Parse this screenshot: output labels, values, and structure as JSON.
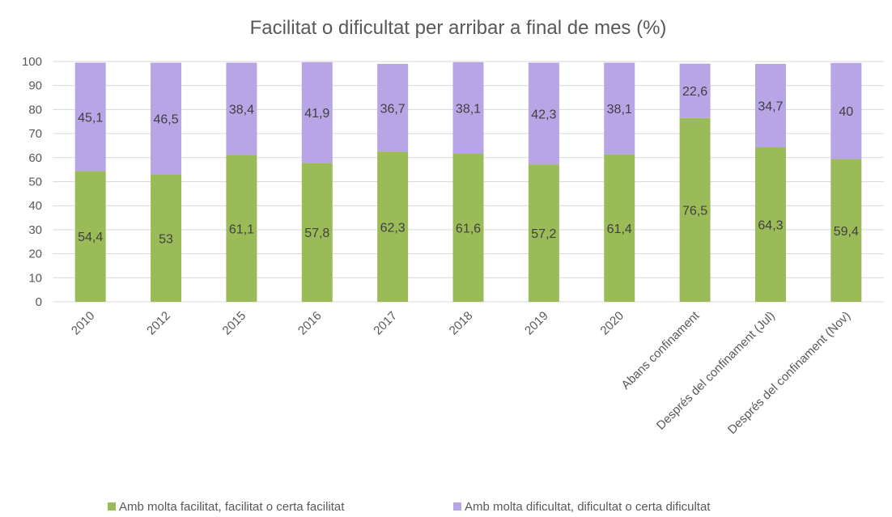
{
  "chart_data": {
    "type": "stacked_bar",
    "title": "Facilitat o dificultat per arribar a final de mes (%)",
    "categories": [
      "2010",
      "2012",
      "2015",
      "2016",
      "2017",
      "2018",
      "2019",
      "2020",
      "Abans confinament",
      "Després del confinament (Jul)",
      "Després del confinament (Nov)"
    ],
    "series": [
      {
        "name": "Amb molta facilitat, facilitat o certa facilitat",
        "color": "#9bbb59",
        "values": [
          54.4,
          53,
          61.1,
          57.8,
          62.3,
          61.6,
          57.2,
          61.4,
          76.5,
          64.3,
          59.4
        ],
        "value_labels": [
          "54,4",
          "53",
          "61,1",
          "57,8",
          "62,3",
          "61,6",
          "57,2",
          "61,4",
          "76,5",
          "64,3",
          "59,4"
        ]
      },
      {
        "name": "Amb molta dificultat, dificultat o certa dificultat",
        "color": "#b7a5e6",
        "values": [
          45.1,
          46.5,
          38.4,
          41.9,
          36.7,
          38.1,
          42.3,
          38.1,
          22.6,
          34.7,
          40
        ],
        "value_labels": [
          "45,1",
          "46,5",
          "38,4",
          "41,9",
          "36,7",
          "38,1",
          "42,3",
          "38,1",
          "22,6",
          "34,7",
          "40"
        ]
      }
    ],
    "ylim": [
      0,
      100
    ],
    "yticks": [
      0,
      10,
      20,
      30,
      40,
      50,
      60,
      70,
      80,
      90,
      100
    ],
    "grid": true,
    "legend": "bottom"
  }
}
